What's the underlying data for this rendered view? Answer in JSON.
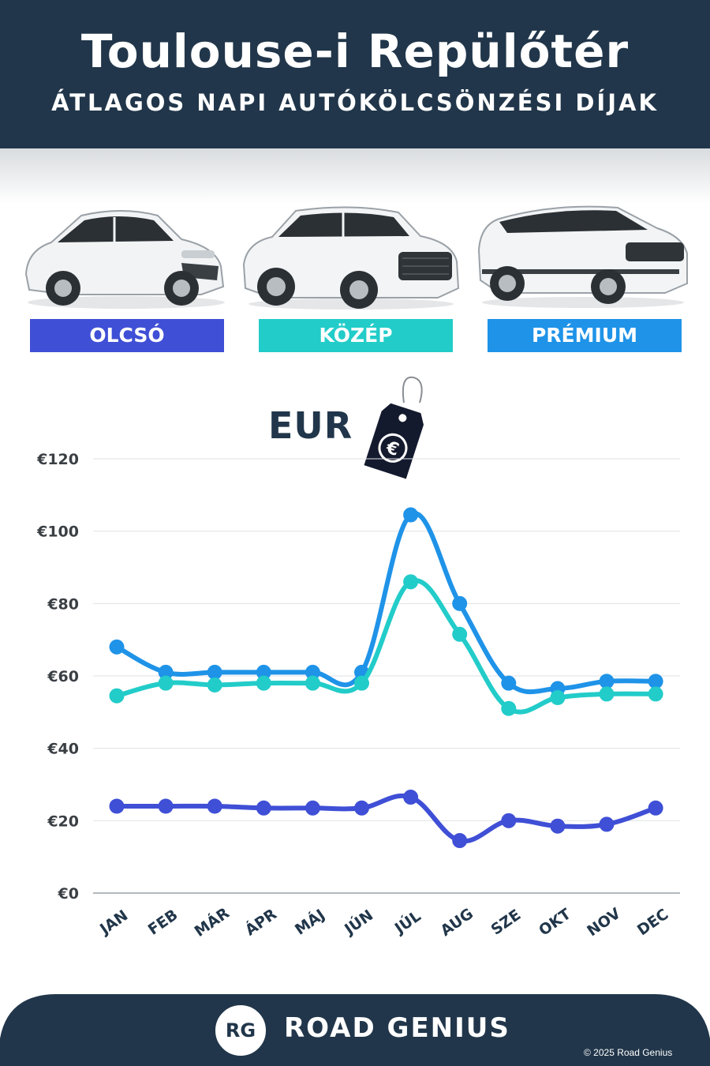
{
  "header": {
    "title": "Toulouse-i Repülőtér",
    "subtitle": "ÁTLAGOS NAPI AUTÓKÖLCSÖNZÉSI DÍJAK"
  },
  "categories": [
    {
      "label": "OLCSÓ",
      "color": "#3f4fd6"
    },
    {
      "label": "KÖZÉP",
      "color": "#22ccc9"
    },
    {
      "label": "PRÉMIUM",
      "color": "#1f93e8"
    }
  ],
  "currency_label": "EUR",
  "tag_symbol": "€",
  "chart_data": {
    "type": "line",
    "x": [
      "JAN",
      "FEB",
      "MÁR",
      "ÁPR",
      "MÁJ",
      "JÚN",
      "JÚL",
      "AUG",
      "SZE",
      "OKT",
      "NOV",
      "DEC"
    ],
    "ylim": [
      0,
      120
    ],
    "yticks": [
      0,
      20,
      40,
      60,
      80,
      100,
      120
    ],
    "ytick_labels": [
      "€0",
      "€20",
      "€40",
      "€60",
      "€80",
      "€100",
      "€120"
    ],
    "grid": true,
    "series": [
      {
        "name": "PRÉMIUM",
        "color": "#1f93e8",
        "values": [
          68,
          61,
          61,
          61,
          61,
          61,
          104.5,
          80,
          58,
          56.5,
          58.5,
          58.5
        ]
      },
      {
        "name": "KÖZÉP",
        "color": "#22ccc9",
        "values": [
          54.5,
          58,
          57.5,
          58,
          58,
          58,
          86,
          71.5,
          51,
          54,
          55,
          55
        ]
      },
      {
        "name": "OLCSÓ",
        "color": "#3f4fd6",
        "values": [
          24,
          24,
          24,
          23.5,
          23.5,
          23.5,
          26.5,
          14.5,
          20,
          18.5,
          19,
          23.5
        ]
      }
    ]
  },
  "footer": {
    "logo": "RG",
    "brand": "ROAD GENIUS",
    "copyright": "© 2025 Road Genius",
    "bg_color": "#21364a"
  }
}
